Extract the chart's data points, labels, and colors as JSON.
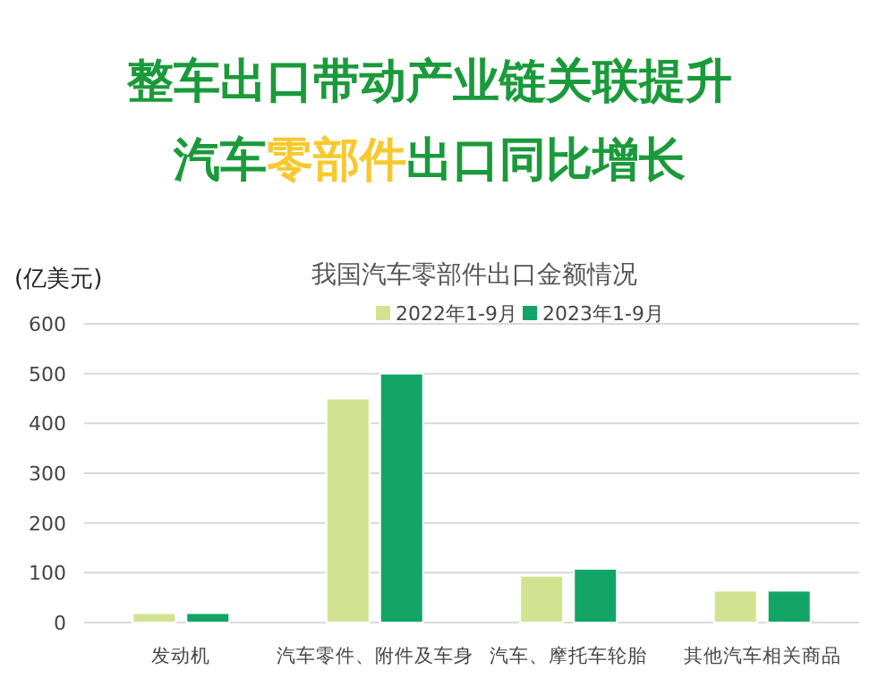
{
  "chart_data": {
    "type": "bar",
    "title": "整车出口带动产业链关联提升",
    "subtitle": "汽车零部件出口同比增长",
    "annotations": [
      "我国汽车零部件出口金额情况"
    ],
    "ylabel": "(亿美元)",
    "categories": [
      "发动机",
      "汽车零件、附件及车身",
      "汽车、摩托车轮胎",
      "其他汽车相关商品"
    ],
    "series": [
      {
        "name": "2022年1-9月",
        "color": "#d1e391",
        "values": [
          19,
          450,
          94,
          64
        ]
      },
      {
        "name": "2023年1-9月",
        "color": "#13a566",
        "values": [
          19,
          500,
          108,
          64
        ]
      }
    ],
    "ylim": [
      0,
      600
    ],
    "yticks": [
      0,
      100,
      200,
      300,
      400,
      500,
      600
    ],
    "grid": "y",
    "legend": "top"
  }
}
